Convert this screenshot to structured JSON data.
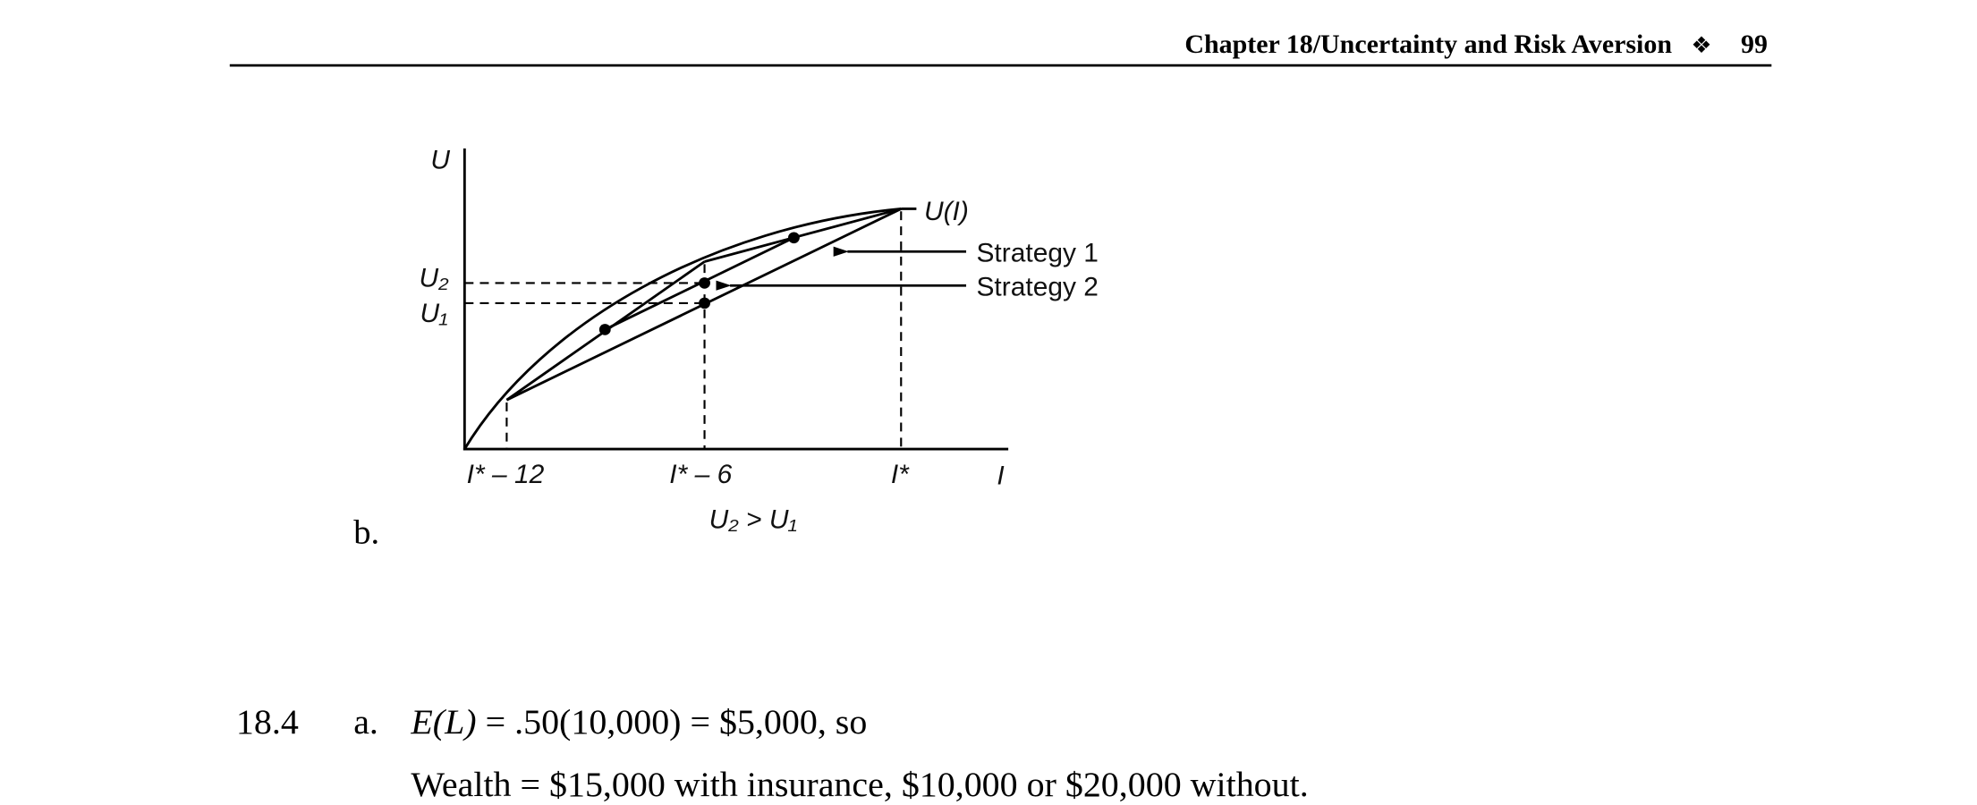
{
  "header": {
    "title": "Chapter 18/Uncertainty and Risk Aversion",
    "ornament": "❖",
    "page": "99"
  },
  "part_label": "b.",
  "figure": {
    "y_axis_label": "U",
    "x_axis_label": "I",
    "curve_label": "U(I)",
    "y_labels": [
      "U₂",
      "U₁"
    ],
    "x_labels": [
      "I* – 12",
      "I* – 6",
      "I*"
    ],
    "strategies": [
      "Strategy 1",
      "Strategy 2"
    ],
    "caption": "U₂ > U₁"
  },
  "problem": {
    "number": "18.4",
    "part": "a.",
    "line1": {
      "expr": "E(L)",
      "rest": " = .50(10,000) = $5,000, so"
    },
    "line2": "Wealth = $15,000 with insurance, $10,000 or $20,000 without."
  }
}
